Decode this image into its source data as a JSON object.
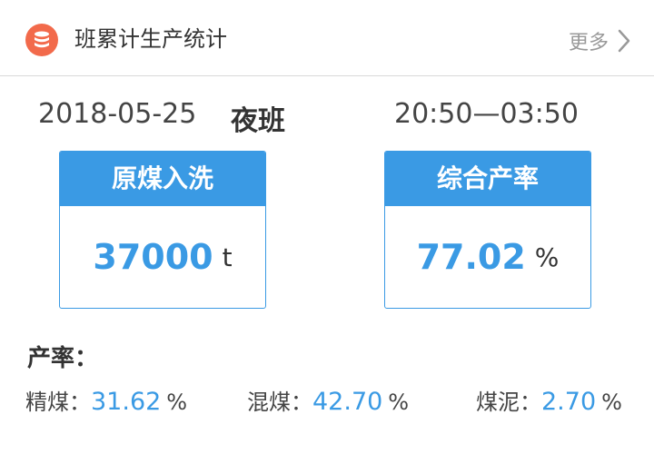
{
  "header": {
    "title": "班累计生产统计",
    "more_label": "更多",
    "icon": "database-icon",
    "icon_color": "#f26a4b"
  },
  "shift_info": {
    "date": "2018-05-25",
    "shift": "夜班",
    "time_range": "20:50—03:50"
  },
  "cards": [
    {
      "title": "原煤入洗",
      "value": "37000",
      "unit": "t"
    },
    {
      "title": "综合产率",
      "value": "77.02",
      "unit": "%"
    }
  ],
  "rates": {
    "heading": "产率：",
    "items": [
      {
        "label": "精煤：",
        "value": "31.62",
        "unit": "%"
      },
      {
        "label": "混煤：",
        "value": "42.70",
        "unit": "%"
      },
      {
        "label": "煤泥：",
        "value": "2.70",
        "unit": "%"
      }
    ]
  },
  "colors": {
    "accent": "#3a9ae4",
    "text": "#333333",
    "muted": "#999999"
  }
}
